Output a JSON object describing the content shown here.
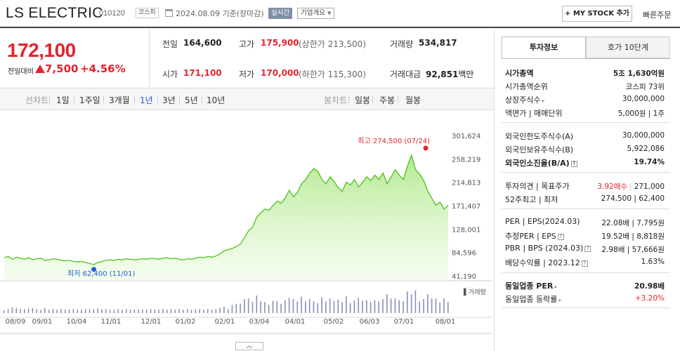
{
  "header": {
    "company": "LS ELECTRIC",
    "code": "010120",
    "market": "코스피",
    "date": "2024.08.09 기준(장마감)",
    "live": "실시간",
    "overview": "기업개요",
    "mystock": "+ MY STOCK 추가",
    "quick_order": "빠른주문"
  },
  "quote": {
    "price": "172,100",
    "change_label": "전일대비",
    "change": "7,500",
    "change_pct": "+4.56%",
    "prev_close_label": "전일",
    "prev_close": "164,600",
    "high_label": "고가",
    "high": "175,900",
    "upper_limit": "(상한가 213,500)",
    "volume_label": "거래량",
    "volume": "534,817",
    "open_label": "시가",
    "open": "171,100",
    "low_label": "저가",
    "low": "170,000",
    "lower_limit": "(하한가 115,300)",
    "value_label": "거래대금",
    "value": "92,851",
    "value_unit": "백만"
  },
  "range_tabs": {
    "line_label": "선차트",
    "items": [
      "1일",
      "1주일",
      "3개월",
      "1년",
      "3년",
      "5년",
      "10년"
    ],
    "selected": "1년",
    "candle_label": "봉차트",
    "candle_items": [
      "일봉",
      "주봉",
      "월봉"
    ]
  },
  "chart_data": {
    "type": "area",
    "xlabel": "",
    "ylabel": "",
    "y_ticks": [
      301624,
      258219,
      214813,
      171407,
      128001,
      84596,
      41190
    ],
    "ylim": [
      41190,
      301624
    ],
    "x_ticks": [
      "08/09",
      "09/01",
      "10/04",
      "11/01",
      "12/01",
      "01/02",
      "02/01",
      "03/04",
      "04/01",
      "05/02",
      "06/03",
      "07/01",
      "08/01"
    ],
    "series": [
      {
        "values": [
          75000,
          77000,
          72000,
          76000,
          74000,
          72000,
          75000,
          71000,
          73000,
          74000,
          70000,
          71000,
          73000,
          72000,
          70000,
          69000,
          70000,
          68000,
          67000,
          68000,
          66000,
          64000,
          62400,
          66000,
          68000,
          70000,
          71000,
          70000,
          72000,
          71000,
          73000,
          72000,
          71000,
          72000,
          73000,
          72000,
          74000,
          73000,
          72000,
          74000,
          75000,
          73000,
          74000,
          72000,
          71000,
          73000,
          72000,
          74000,
          76000,
          75000,
          77000,
          76000,
          78000,
          82000,
          88000,
          90000,
          92000,
          96000,
          100000,
          112000,
          125000,
          132000,
          150000,
          158000,
          165000,
          163000,
          172000,
          180000,
          176000,
          186000,
          200000,
          188000,
          196000,
          212000,
          220000,
          232000,
          240000,
          235000,
          220000,
          212000,
          225000,
          216000,
          205000,
          198000,
          215000,
          210000,
          220000,
          206000,
          215000,
          225000,
          218000,
          228000,
          220000,
          232000,
          212000,
          225000,
          238000,
          228000,
          220000,
          245000,
          265000,
          238000,
          230000,
          218000,
          198000,
          185000,
          172000,
          178000,
          165000,
          172100
        ]
      }
    ],
    "volume_label": "거래량",
    "annotations": {
      "high": "최고 274,500 (07/24)",
      "low": "최저 62,400 (11/01)"
    },
    "grid": false
  },
  "invest_panel": {
    "tabs": [
      "투자정보",
      "호가 10단계"
    ],
    "rows": [
      {
        "label": "시가총액",
        "value": "5조 1,630억원"
      },
      {
        "label": "시가총액순위",
        "value": "코스피 73위"
      },
      {
        "label": "상장주식수",
        "value": "30,000,000"
      },
      {
        "label": "액면가 | 매매단위",
        "value": "5,000원 | 1주"
      },
      {
        "label": "외국인한도주식수(A)",
        "value": "30,000,000"
      },
      {
        "label": "외국인보유주식수(B)",
        "value": "5,922,086"
      },
      {
        "label": "외국인소진율(B/A)",
        "value": "19.74%"
      },
      {
        "label": "투자의견 | 목표주가",
        "value_red": "3.92매수",
        "value": "271,000"
      },
      {
        "label": "52주최고 | 최저",
        "value": "274,500 | 62,400"
      },
      {
        "label": "PER | EPS(2024.03)",
        "value": "22.08배 | 7,795원"
      },
      {
        "label": "추정PER | EPS",
        "value": "19.52배 | 8,818원"
      },
      {
        "label": "PBR | BPS (2024.03)",
        "value": "2.98배 | 57,666원"
      },
      {
        "label": "배당수익률 | 2023.12",
        "value": "1.63%"
      },
      {
        "label": "동일업종 PER",
        "value": "20.98배"
      },
      {
        "label": "동일업종 등락률",
        "value": "+3.20%"
      }
    ]
  }
}
